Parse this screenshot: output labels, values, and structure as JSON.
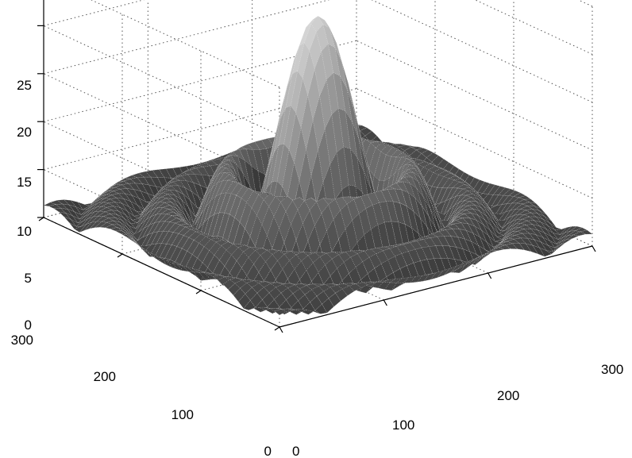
{
  "chart_data": {
    "type": "surface3d",
    "title": "",
    "xlabel": "",
    "ylabel": "",
    "zlabel": "",
    "xlim": [
      0,
      300
    ],
    "ylim": [
      0,
      300
    ],
    "zlim": [
      0,
      25
    ],
    "x_ticks": [
      "0",
      "100",
      "200",
      "300"
    ],
    "y_ticks": [
      "0",
      "100",
      "200",
      "300"
    ],
    "z_ticks": [
      "0",
      "5",
      "10",
      "15",
      "20",
      "25"
    ],
    "grid": true,
    "colormap": "gray",
    "peak": {
      "x": 150,
      "y": 150,
      "z": 22.5
    },
    "side_lobe_height": 7,
    "function": "22.5 * |J1(r) / r|-like sombrero (Airy pattern) centered at (150,150)"
  }
}
